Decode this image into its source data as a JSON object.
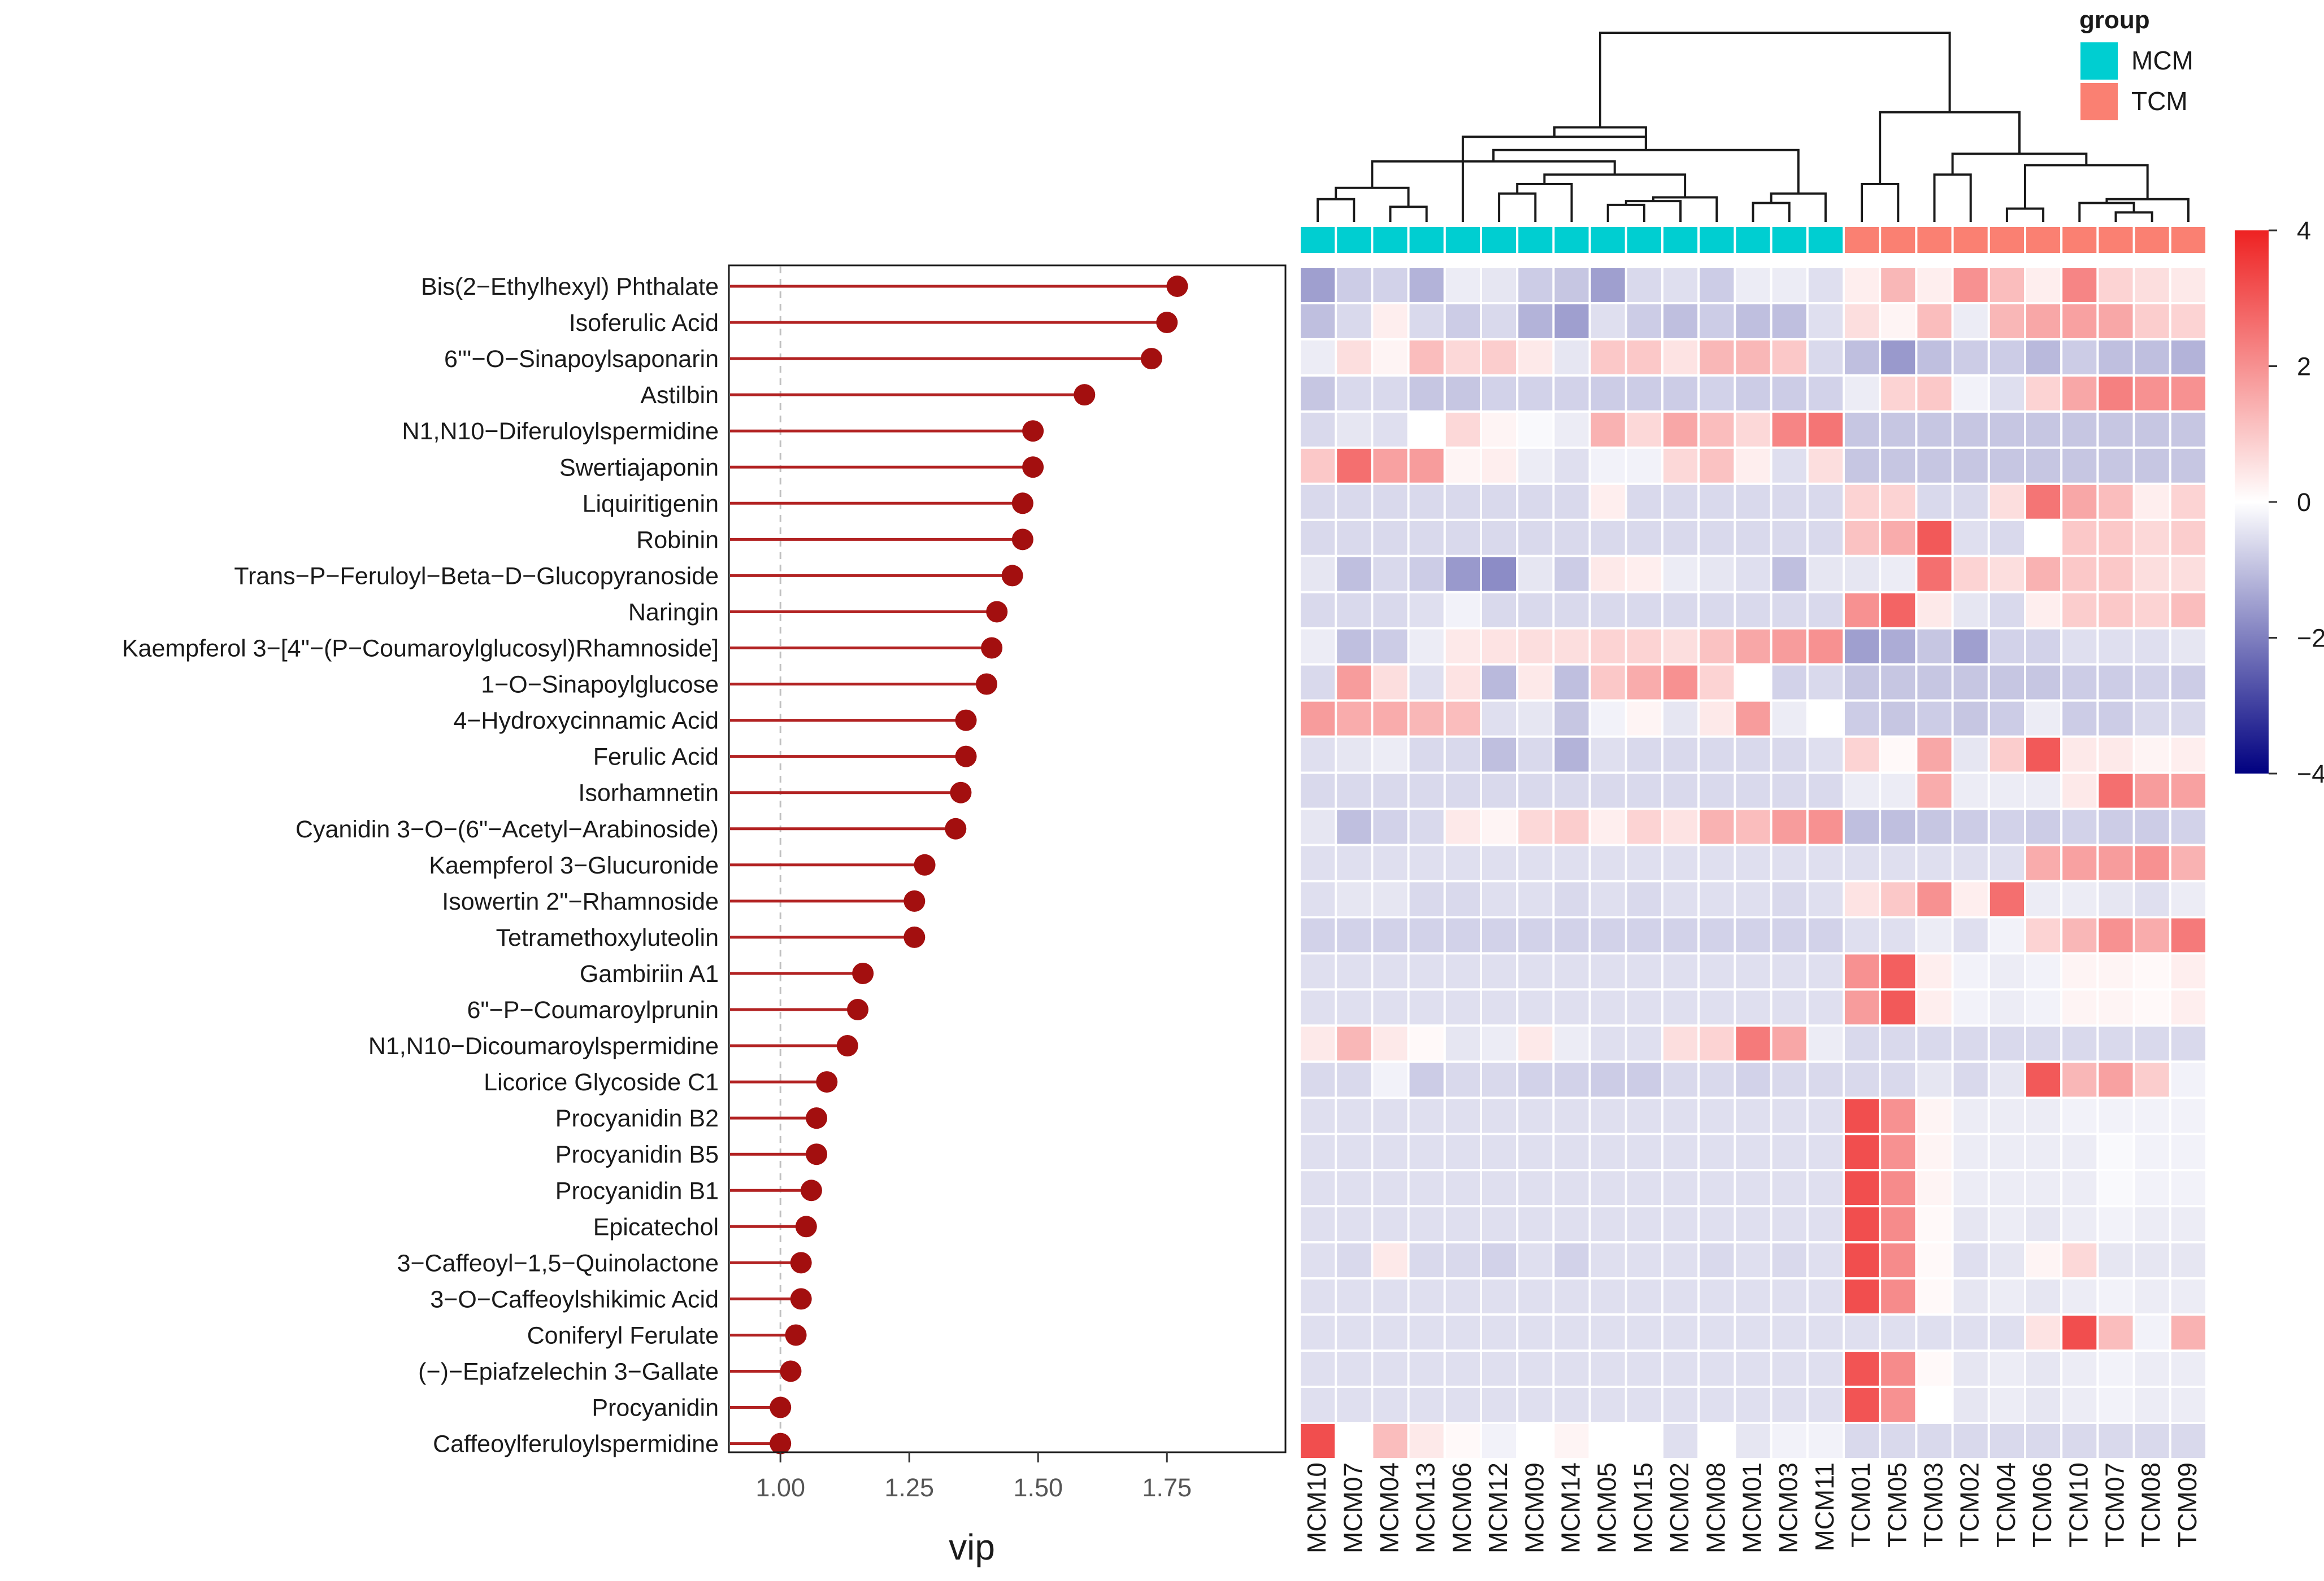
{
  "chart_data": [
    {
      "type": "lollipop",
      "orientation": "horizontal",
      "xlabel": "vip",
      "x_ticks": [
        1.0,
        1.25,
        1.5,
        1.75
      ],
      "x_tick_labels": [
        "1.00",
        "1.25",
        "1.50",
        "1.75"
      ],
      "xlim": [
        0.9,
        1.98
      ],
      "reference_line": 1.0,
      "categories": [
        "Bis(2−Ethylhexyl) Phthalate",
        "Isoferulic Acid",
        "6'''−O−Sinapoylsaponarin",
        "Astilbin",
        "N1,N10−Diferuloylspermidine",
        "Swertiajaponin",
        "Liquiritigenin",
        "Robinin",
        "Trans−P−Feruloyl−Beta−D−Glucopyranoside",
        "Naringin",
        "Kaempferol 3−[4\"−(P−Coumaroylglucosyl)Rhamnoside]",
        "1−O−Sinapoylglucose",
        "4−Hydroxycinnamic Acid",
        "Ferulic Acid",
        "Isorhamnetin",
        "Cyanidin 3−O−(6\"−Acetyl−Arabinoside)",
        "Kaempferol 3−Glucuronide",
        "Isowertin 2\"−Rhamnoside",
        "Tetramethoxyluteolin",
        "Gambiriin A1",
        "6\"−P−Coumaroylprunin",
        "N1,N10−Dicoumaroylspermidine",
        "Licorice Glycoside C1",
        "Procyanidin B2",
        "Procyanidin B5",
        "Procyanidin B1",
        "Epicatechol",
        "3−Caffeoyl−1,5−Quinolactone",
        "3−O−Caffeoylshikimic Acid",
        "Coniferyl Ferulate",
        "(−)−Epiafzelechin 3−Gallate",
        "Procyanidin",
        "Caffeoylferuloylspermidine"
      ],
      "values": [
        1.77,
        1.75,
        1.72,
        1.59,
        1.49,
        1.49,
        1.47,
        1.47,
        1.45,
        1.42,
        1.41,
        1.4,
        1.36,
        1.36,
        1.35,
        1.34,
        1.28,
        1.26,
        1.26,
        1.16,
        1.15,
        1.13,
        1.09,
        1.07,
        1.07,
        1.06,
        1.05,
        1.04,
        1.04,
        1.03,
        1.02,
        1.0,
        1.0
      ],
      "colors": {
        "stem": "#b22222",
        "dot": "#a30f0f",
        "refline": "#c0c0c0"
      }
    },
    {
      "type": "heatmap",
      "columns": [
        "MCM10",
        "MCM07",
        "MCM04",
        "MCM13",
        "MCM06",
        "MCM12",
        "MCM09",
        "MCM14",
        "MCM05",
        "MCM15",
        "MCM02",
        "MCM08",
        "MCM01",
        "MCM03",
        "MCM11",
        "TCM01",
        "TCM05",
        "TCM03",
        "TCM02",
        "TCM04",
        "TCM06",
        "TCM10",
        "TCM07",
        "TCM08",
        "TCM09"
      ],
      "groups": [
        "MCM",
        "MCM",
        "MCM",
        "MCM",
        "MCM",
        "MCM",
        "MCM",
        "MCM",
        "MCM",
        "MCM",
        "MCM",
        "MCM",
        "MCM",
        "MCM",
        "MCM",
        "TCM",
        "TCM",
        "TCM",
        "TCM",
        "TCM",
        "TCM",
        "TCM",
        "TCM",
        "TCM",
        "TCM"
      ],
      "legend_title": "group",
      "legend": [
        {
          "label": "MCM",
          "color": "#00ced1"
        },
        {
          "label": "TCM",
          "color": "#fa8072"
        }
      ],
      "colorbar": {
        "min": -4,
        "max": 4,
        "ticks": [
          4,
          2,
          0,
          -2,
          -4
        ],
        "tick_labels": [
          "4",
          "2",
          "0",
          "−2",
          "−4"
        ],
        "low_color": "#000080",
        "mid_color": "#ffffff",
        "high_color": "#ee2222"
      },
      "values": [
        [
          -1.5,
          -0.8,
          -0.7,
          -1.2,
          -0.3,
          -0.4,
          -0.8,
          -0.9,
          -1.5,
          -0.6,
          -0.5,
          -0.8,
          -0.3,
          -0.3,
          -0.5,
          0.3,
          1.3,
          0.3,
          2.0,
          1.2,
          0.3,
          2.2,
          0.8,
          0.6,
          0.4
        ],
        [
          -1.0,
          -0.6,
          0.3,
          -0.6,
          -0.8,
          -0.6,
          -1.2,
          -1.5,
          -0.5,
          -0.8,
          -1.0,
          -0.8,
          -1.0,
          -1.0,
          -0.5,
          0.6,
          0.2,
          1.2,
          -0.3,
          1.3,
          1.6,
          1.7,
          1.6,
          0.9,
          0.8
        ],
        [
          -0.3,
          0.6,
          0.2,
          1.2,
          0.7,
          0.9,
          0.4,
          -0.4,
          1.0,
          1.0,
          0.5,
          1.3,
          1.3,
          1.0,
          -0.6,
          -1.0,
          -1.6,
          -1.0,
          -0.8,
          -0.8,
          -1.1,
          -0.8,
          -1.0,
          -1.0,
          -1.2
        ],
        [
          -0.9,
          -0.6,
          -0.6,
          -0.9,
          -0.9,
          -0.7,
          -0.7,
          -0.7,
          -0.8,
          -0.8,
          -0.8,
          -0.7,
          -0.8,
          -0.8,
          -0.7,
          -0.3,
          0.8,
          1.0,
          -0.2,
          -0.5,
          0.8,
          1.6,
          2.3,
          2.0,
          2.0
        ],
        [
          -0.6,
          -0.4,
          -0.5,
          0.0,
          0.7,
          0.2,
          -0.1,
          -0.3,
          1.4,
          0.7,
          1.6,
          1.2,
          0.7,
          2.2,
          2.5,
          -0.9,
          -0.9,
          -0.9,
          -0.9,
          -0.9,
          -0.9,
          -0.9,
          -0.9,
          -0.9,
          -0.9
        ],
        [
          1.0,
          2.6,
          1.7,
          1.8,
          0.2,
          0.3,
          -0.3,
          -0.5,
          -0.2,
          -0.2,
          0.7,
          1.1,
          0.3,
          -0.5,
          0.6,
          -0.9,
          -0.9,
          -0.9,
          -0.9,
          -0.9,
          -0.9,
          -0.9,
          -0.9,
          -0.9,
          -0.9
        ],
        [
          -0.6,
          -0.6,
          -0.6,
          -0.6,
          -0.6,
          -0.6,
          -0.6,
          -0.6,
          0.3,
          -0.6,
          -0.6,
          -0.6,
          -0.6,
          -0.6,
          -0.6,
          0.8,
          0.8,
          -0.6,
          -0.6,
          0.6,
          2.5,
          1.6,
          1.2,
          0.3,
          0.8
        ],
        [
          -0.6,
          -0.6,
          -0.6,
          -0.6,
          -0.6,
          -0.6,
          -0.6,
          -0.6,
          -0.6,
          -0.6,
          -0.6,
          -0.6,
          -0.6,
          -0.6,
          -0.6,
          1.1,
          1.5,
          3.0,
          -0.5,
          -0.6,
          0.0,
          1.0,
          1.0,
          0.7,
          0.9
        ],
        [
          -0.4,
          -1.0,
          -0.6,
          -0.8,
          -1.6,
          -1.8,
          -0.4,
          -0.8,
          0.4,
          0.3,
          -0.3,
          -0.4,
          -0.5,
          -1.0,
          -0.4,
          -0.4,
          -0.3,
          2.6,
          0.8,
          0.6,
          1.4,
          1.0,
          1.0,
          0.6,
          0.6
        ],
        [
          -0.6,
          -0.6,
          -0.6,
          -0.5,
          -0.2,
          -0.6,
          -0.6,
          -0.6,
          -0.6,
          -0.6,
          -0.6,
          -0.6,
          -0.6,
          -0.6,
          -0.6,
          2.0,
          2.8,
          0.4,
          -0.4,
          -0.6,
          0.3,
          0.9,
          1.0,
          0.8,
          1.2
        ],
        [
          -0.3,
          -1.0,
          -0.8,
          -0.3,
          0.4,
          0.5,
          0.6,
          0.6,
          0.8,
          0.8,
          0.6,
          1.1,
          1.6,
          1.8,
          2.0,
          -1.5,
          -1.3,
          -0.9,
          -1.5,
          -0.7,
          -0.7,
          -0.5,
          -0.5,
          -0.5,
          -0.4
        ],
        [
          -0.6,
          1.8,
          0.6,
          -0.5,
          0.5,
          -1.1,
          0.4,
          -1.0,
          1.0,
          1.5,
          2.0,
          0.8,
          0.0,
          -0.7,
          -0.6,
          -0.9,
          -0.9,
          -0.9,
          -0.9,
          -0.9,
          -0.9,
          -0.8,
          -0.8,
          -0.7,
          -0.8
        ],
        [
          1.8,
          1.5,
          1.5,
          1.3,
          1.2,
          -0.5,
          -0.4,
          -0.9,
          -0.2,
          0.2,
          -0.4,
          0.4,
          1.8,
          -0.3,
          0.0,
          -0.8,
          -0.9,
          -0.8,
          -0.9,
          -0.8,
          -0.3,
          -0.8,
          -0.8,
          -0.6,
          -0.6
        ],
        [
          -0.5,
          -0.4,
          -0.3,
          -0.6,
          -0.6,
          -1.0,
          -0.6,
          -1.2,
          -0.5,
          -0.6,
          -0.6,
          -0.6,
          -0.6,
          -0.6,
          -0.5,
          0.8,
          0.1,
          1.6,
          -0.4,
          0.9,
          3.0,
          0.4,
          0.4,
          0.2,
          0.3
        ],
        [
          -0.6,
          -0.6,
          -0.6,
          -0.6,
          -0.6,
          -0.6,
          -0.6,
          -0.6,
          -0.6,
          -0.6,
          -0.6,
          -0.6,
          -0.6,
          -0.6,
          -0.6,
          -0.3,
          -0.3,
          1.5,
          -0.3,
          -0.3,
          -0.3,
          0.4,
          2.6,
          1.8,
          1.7
        ],
        [
          -0.4,
          -1.0,
          -0.7,
          -0.6,
          0.4,
          0.2,
          0.7,
          0.9,
          0.3,
          0.8,
          0.5,
          1.4,
          1.2,
          1.8,
          2.0,
          -1.0,
          -1.0,
          -0.9,
          -0.8,
          -0.7,
          -0.8,
          -0.7,
          -0.8,
          -0.8,
          -0.7
        ],
        [
          -0.5,
          -0.5,
          -0.5,
          -0.5,
          -0.5,
          -0.5,
          -0.5,
          -0.5,
          -0.5,
          -0.5,
          -0.5,
          -0.5,
          -0.5,
          -0.5,
          -0.5,
          -0.5,
          -0.5,
          -0.5,
          -0.5,
          -0.5,
          1.5,
          1.7,
          1.8,
          2.0,
          1.4
        ],
        [
          -0.5,
          -0.4,
          -0.4,
          -0.6,
          -0.6,
          -0.5,
          -0.5,
          -0.6,
          -0.5,
          -0.6,
          -0.5,
          -0.5,
          -0.5,
          -0.6,
          -0.5,
          0.5,
          1.0,
          2.0,
          0.3,
          2.6,
          -0.3,
          -0.3,
          -0.4,
          -0.5,
          -0.3
        ],
        [
          -0.7,
          -0.7,
          -0.7,
          -0.7,
          -0.7,
          -0.7,
          -0.7,
          -0.7,
          -0.7,
          -0.7,
          -0.7,
          -0.7,
          -0.7,
          -0.7,
          -0.7,
          -0.5,
          -0.5,
          -0.3,
          -0.5,
          -0.2,
          0.8,
          1.3,
          2.0,
          1.5,
          2.4
        ],
        [
          -0.5,
          -0.5,
          -0.5,
          -0.5,
          -0.5,
          -0.5,
          -0.5,
          -0.5,
          -0.5,
          -0.5,
          -0.5,
          -0.5,
          -0.5,
          -0.5,
          -0.5,
          2.0,
          2.9,
          0.3,
          -0.2,
          -0.3,
          -0.2,
          0.2,
          0.2,
          0.1,
          0.3
        ],
        [
          -0.5,
          -0.5,
          -0.5,
          -0.5,
          -0.5,
          -0.5,
          -0.5,
          -0.5,
          -0.5,
          -0.5,
          -0.5,
          -0.5,
          -0.5,
          -0.5,
          -0.5,
          1.8,
          3.0,
          0.3,
          -0.2,
          -0.3,
          -0.2,
          0.2,
          0.2,
          0.1,
          0.3
        ],
        [
          0.4,
          1.3,
          0.4,
          0.1,
          -0.4,
          -0.3,
          0.4,
          -0.3,
          -0.5,
          -0.5,
          0.6,
          0.8,
          2.4,
          1.6,
          -0.3,
          -0.6,
          -0.6,
          -0.6,
          -0.6,
          -0.6,
          -0.6,
          -0.6,
          -0.6,
          -0.6,
          -0.6
        ],
        [
          -0.6,
          -0.6,
          -0.2,
          -0.8,
          -0.6,
          -0.6,
          -0.7,
          -0.7,
          -0.8,
          -0.8,
          -0.6,
          -0.6,
          -0.7,
          -0.6,
          -0.6,
          -0.6,
          -0.6,
          -0.4,
          -0.6,
          -0.4,
          3.0,
          1.3,
          1.7,
          0.9,
          -0.2
        ],
        [
          -0.5,
          -0.5,
          -0.5,
          -0.5,
          -0.5,
          -0.5,
          -0.5,
          -0.5,
          -0.5,
          -0.5,
          -0.5,
          -0.5,
          -0.5,
          -0.5,
          -0.5,
          3.2,
          2.0,
          0.2,
          -0.3,
          -0.3,
          -0.3,
          -0.2,
          -0.2,
          -0.2,
          -0.2
        ],
        [
          -0.5,
          -0.5,
          -0.5,
          -0.5,
          -0.5,
          -0.5,
          -0.5,
          -0.5,
          -0.5,
          -0.5,
          -0.5,
          -0.5,
          -0.5,
          -0.5,
          -0.5,
          3.2,
          2.0,
          0.2,
          -0.3,
          -0.3,
          -0.3,
          -0.3,
          -0.1,
          -0.2,
          -0.2
        ],
        [
          -0.5,
          -0.5,
          -0.5,
          -0.5,
          -0.5,
          -0.5,
          -0.5,
          -0.5,
          -0.5,
          -0.5,
          -0.5,
          -0.5,
          -0.5,
          -0.5,
          -0.5,
          3.2,
          2.1,
          0.2,
          -0.3,
          -0.3,
          -0.3,
          -0.3,
          -0.1,
          -0.2,
          -0.2
        ],
        [
          -0.5,
          -0.5,
          -0.5,
          -0.5,
          -0.5,
          -0.5,
          -0.5,
          -0.5,
          -0.5,
          -0.5,
          -0.5,
          -0.5,
          -0.5,
          -0.5,
          -0.5,
          3.2,
          2.1,
          0.1,
          -0.4,
          -0.3,
          -0.4,
          -0.3,
          -0.2,
          -0.3,
          -0.3
        ],
        [
          -0.5,
          -0.6,
          0.4,
          -0.6,
          -0.6,
          -0.7,
          -0.5,
          -0.7,
          -0.5,
          -0.5,
          -0.5,
          -0.6,
          -0.5,
          -0.6,
          -0.5,
          3.2,
          2.1,
          0.1,
          -0.5,
          -0.4,
          0.2,
          0.7,
          -0.4,
          -0.4,
          -0.4
        ],
        [
          -0.5,
          -0.5,
          -0.5,
          -0.5,
          -0.5,
          -0.5,
          -0.5,
          -0.5,
          -0.5,
          -0.5,
          -0.5,
          -0.5,
          -0.5,
          -0.5,
          -0.5,
          3.2,
          2.1,
          0.1,
          -0.4,
          -0.3,
          -0.4,
          -0.3,
          -0.2,
          -0.3,
          -0.3
        ],
        [
          -0.5,
          -0.5,
          -0.5,
          -0.5,
          -0.5,
          -0.5,
          -0.5,
          -0.5,
          -0.5,
          -0.5,
          -0.5,
          -0.5,
          -0.5,
          -0.5,
          -0.5,
          -0.5,
          -0.5,
          -0.5,
          -0.5,
          -0.5,
          0.5,
          3.2,
          1.2,
          -0.2,
          1.4
        ],
        [
          -0.5,
          -0.5,
          -0.5,
          -0.5,
          -0.5,
          -0.5,
          -0.5,
          -0.5,
          -0.5,
          -0.5,
          -0.5,
          -0.5,
          -0.5,
          -0.5,
          -0.5,
          3.1,
          2.1,
          0.1,
          -0.4,
          -0.3,
          -0.4,
          -0.3,
          -0.2,
          -0.3,
          -0.3
        ],
        [
          -0.5,
          -0.5,
          -0.5,
          -0.5,
          -0.5,
          -0.5,
          -0.5,
          -0.5,
          -0.5,
          -0.5,
          -0.5,
          -0.5,
          -0.5,
          -0.5,
          -0.5,
          3.1,
          2.0,
          0.0,
          -0.4,
          -0.3,
          -0.4,
          -0.3,
          -0.2,
          -0.3,
          -0.3
        ],
        [
          3.2,
          0.0,
          1.2,
          0.4,
          0.1,
          -0.2,
          0.0,
          0.2,
          0.0,
          0.0,
          -0.5,
          0.0,
          -0.4,
          -0.2,
          -0.2,
          -0.6,
          -0.6,
          -0.6,
          -0.6,
          -0.6,
          -0.6,
          -0.6,
          -0.6,
          -0.6,
          -0.6
        ]
      ],
      "column_dendrogram": [
        [
          0,
          1,
          0.12
        ],
        [
          2,
          3,
          0.08
        ],
        [
          25,
          26,
          0.18
        ],
        [
          5,
          6,
          0.15
        ],
        [
          28,
          7,
          0.2
        ],
        [
          8,
          9,
          0.09
        ],
        [
          30,
          10,
          0.11
        ],
        [
          31,
          11,
          0.13
        ],
        [
          29,
          32,
          0.25
        ],
        [
          27,
          33,
          0.32
        ],
        [
          12,
          13,
          0.1
        ],
        [
          35,
          14,
          0.15
        ],
        [
          34,
          36,
          0.38
        ],
        [
          4,
          37,
          0.45
        ],
        [
          37,
          38,
          0.5
        ],
        [
          15,
          16,
          0.2
        ],
        [
          17,
          18,
          0.25
        ],
        [
          19,
          20,
          0.07
        ],
        [
          22,
          23,
          0.05
        ],
        [
          21,
          43,
          0.1
        ],
        [
          44,
          24,
          0.12
        ],
        [
          42,
          45,
          0.3
        ],
        [
          41,
          46,
          0.36
        ],
        [
          40,
          47,
          0.58
        ],
        [
          39,
          48,
          1.0
        ]
      ]
    }
  ]
}
